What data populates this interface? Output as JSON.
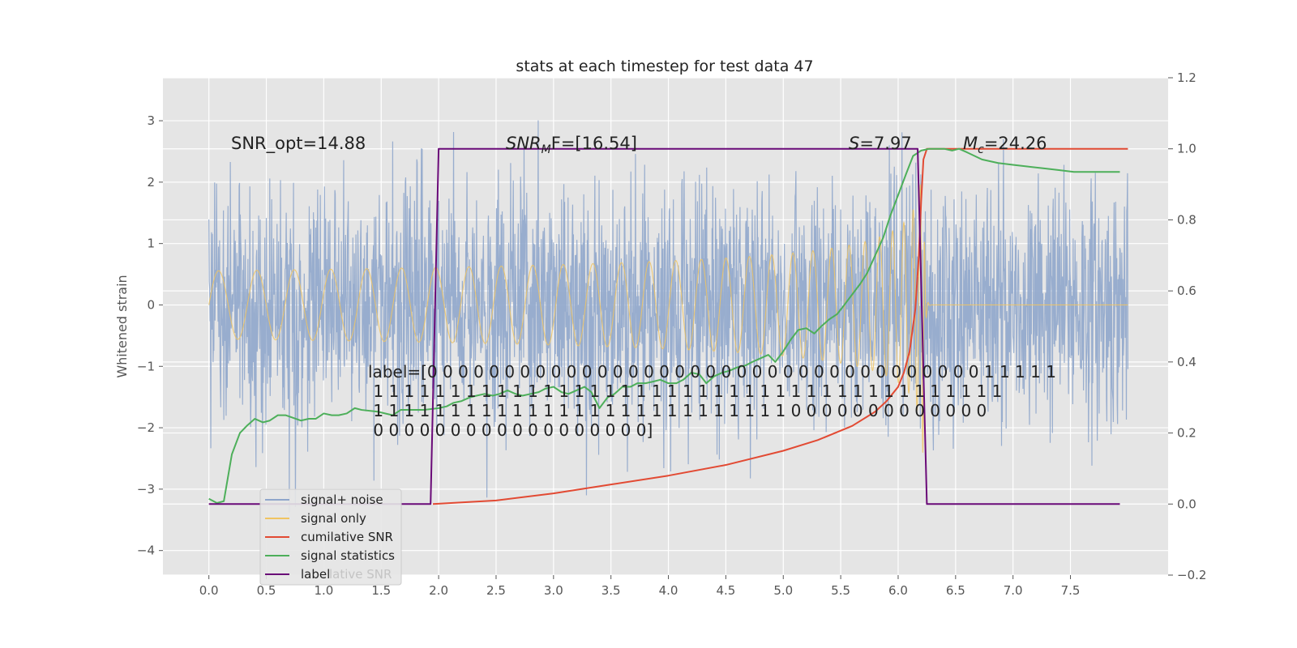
{
  "chart_data": {
    "type": "line",
    "title": "stats at each timestep for test data 47",
    "ylabel": "Whitened strain",
    "xlim": [
      -0.4,
      8.35
    ],
    "ylim": [
      -4.4,
      3.7
    ],
    "y2lim": [
      -0.2,
      1.2
    ],
    "x_ticks": [
      0.0,
      0.5,
      1.0,
      1.5,
      2.0,
      2.5,
      3.0,
      3.5,
      4.0,
      4.5,
      5.0,
      5.5,
      6.0,
      6.5,
      7.0,
      7.5
    ],
    "x_tick_labels": [
      "0.0",
      "0.5",
      "1.0",
      "1.5",
      "2.0",
      "2.5",
      "3.0",
      "3.5",
      "4.0",
      "4.5",
      "5.0",
      "5.5",
      "6.0",
      "6.5",
      "7.0",
      "7.5"
    ],
    "y_ticks": [
      3,
      2,
      1,
      0,
      -1,
      -2,
      -3,
      -4
    ],
    "y_tick_labels": [
      "3",
      "2",
      "1",
      "0",
      "−1",
      "−2",
      "−3",
      "−4"
    ],
    "y2_ticks": [
      1.2,
      1.0,
      0.8,
      0.6,
      0.4,
      0.2,
      0.0,
      -0.2
    ],
    "y2_tick_labels": [
      "1.2",
      "1.0",
      "0.8",
      "0.6",
      "0.4",
      "0.2",
      "0.0",
      "−0.2"
    ],
    "grid": true,
    "legend_placement": "lower-left",
    "legend": [
      {
        "label": "signal+ noise",
        "color": "#8fa6cb"
      },
      {
        "label": "signal only",
        "color": "#f0c461"
      },
      {
        "label": "cumilative SNR",
        "color": "#e24a33"
      },
      {
        "label": "signal statistics",
        "color": "#4daf5a"
      },
      {
        "label": "label",
        "color": "#6a0a78"
      }
    ],
    "legend_ghost_text": "lative SNR",
    "annotations": {
      "snr_opt": "SNR_opt=14.88",
      "snr_mf_prefix": "SNR",
      "snr_mf_sub": "M",
      "snr_mf_rest": "F=[16.54]",
      "s_prefix": "S",
      "s_rest": "=7.97",
      "mc_prefix": "M",
      "mc_sub": "c",
      "mc_rest": "=24.26",
      "label_lines": [
        "label=[0 0 0 0 0 0 0 0 0 0 0 0 0 0 0 0 0 0 0 0 0 0 0 0 0 0 0 0 0 0 0 0 0 0 0 0 1 1 1 1 1",
        " 1 1 1 1 1 1 1 1 1 1 1 1 1 1 1 1 1 1 1 1 1 1 1 1 1 1 1 1 1 1 1 1 1 1 1 1 1 1 1 1 1",
        " 1 1 1 1 1 1 1 1 1 1 1 1 1 1 1 1 1 1 1 1 1 1 1 1 1 1 1 0 0 0 0 0 0 0 0 0 0 0 0 0",
        " 0 0 0 0 0 0 0 0 0 0 0 0 0 0 0 0 0 0]"
      ]
    },
    "noise": {
      "name": "signal+ noise",
      "color": "#8fa6cb",
      "x_range": [
        0.0,
        8.0
      ],
      "typical_range": [
        -2.0,
        2.0
      ],
      "peak_max": 3.3,
      "peak_min": -4.1
    },
    "signal_only": {
      "name": "signal only",
      "color": "#f0c461",
      "x_range": [
        0.0,
        8.0
      ],
      "merger_time": 6.22,
      "peak_amplitude": 2.65
    },
    "series": [
      {
        "name": "cumilative SNR",
        "axis": "right",
        "color": "#e24a33",
        "x": [
          1.95,
          2.5,
          3.0,
          3.5,
          4.0,
          4.5,
          5.0,
          5.3,
          5.6,
          5.8,
          5.9,
          6.0,
          6.05,
          6.1,
          6.15,
          6.18,
          6.2,
          6.22,
          6.25,
          6.5,
          7.0,
          7.5,
          8.0
        ],
        "y": [
          0.0,
          0.01,
          0.03,
          0.055,
          0.08,
          0.11,
          0.15,
          0.18,
          0.22,
          0.26,
          0.29,
          0.33,
          0.37,
          0.43,
          0.55,
          0.7,
          0.85,
          0.97,
          1.0,
          1.0,
          1.0,
          1.0,
          1.0
        ]
      },
      {
        "name": "signal statistics",
        "axis": "right",
        "color": "#4daf5a",
        "x": [
          0.0,
          0.07,
          0.13,
          0.2,
          0.27,
          0.33,
          0.4,
          0.47,
          0.53,
          0.6,
          0.67,
          0.8,
          0.87,
          0.93,
          1.0,
          1.07,
          1.13,
          1.2,
          1.27,
          1.33,
          1.47,
          1.6,
          1.67,
          1.73,
          1.87,
          2.0,
          2.07,
          2.13,
          2.2,
          2.27,
          2.33,
          2.4,
          2.47,
          2.53,
          2.6,
          2.67,
          2.73,
          2.8,
          2.87,
          2.93,
          3.0,
          3.07,
          3.13,
          3.2,
          3.27,
          3.33,
          3.4,
          3.47,
          3.53,
          3.6,
          3.67,
          3.73,
          3.8,
          3.87,
          3.93,
          4.0,
          4.07,
          4.13,
          4.2,
          4.27,
          4.33,
          4.4,
          4.47,
          4.53,
          4.6,
          4.67,
          4.73,
          4.8,
          4.87,
          4.93,
          5.0,
          5.07,
          5.13,
          5.2,
          5.27,
          5.33,
          5.4,
          5.47,
          5.53,
          5.6,
          5.67,
          5.73,
          5.8,
          5.87,
          5.93,
          6.0,
          6.07,
          6.13,
          6.2,
          6.27,
          6.33,
          6.4,
          6.47,
          6.53,
          6.6,
          6.73,
          6.87,
          7.0,
          7.13,
          7.27,
          7.4,
          7.53,
          7.6,
          7.73,
          7.87,
          7.93
        ],
        "y": [
          0.015,
          0.003,
          0.008,
          0.14,
          0.2,
          0.22,
          0.24,
          0.23,
          0.235,
          0.25,
          0.25,
          0.235,
          0.24,
          0.24,
          0.255,
          0.25,
          0.25,
          0.255,
          0.27,
          0.265,
          0.26,
          0.25,
          0.265,
          0.265,
          0.265,
          0.27,
          0.275,
          0.285,
          0.29,
          0.3,
          0.305,
          0.31,
          0.305,
          0.31,
          0.32,
          0.31,
          0.305,
          0.31,
          0.315,
          0.325,
          0.33,
          0.315,
          0.31,
          0.32,
          0.33,
          0.315,
          0.27,
          0.3,
          0.31,
          0.33,
          0.33,
          0.34,
          0.34,
          0.345,
          0.35,
          0.34,
          0.34,
          0.35,
          0.37,
          0.365,
          0.34,
          0.36,
          0.37,
          0.375,
          0.385,
          0.39,
          0.4,
          0.41,
          0.42,
          0.4,
          0.43,
          0.465,
          0.49,
          0.495,
          0.48,
          0.5,
          0.52,
          0.535,
          0.56,
          0.59,
          0.62,
          0.65,
          0.7,
          0.75,
          0.81,
          0.87,
          0.93,
          0.98,
          0.995,
          1.0,
          1.0,
          1.0,
          0.995,
          1.0,
          0.99,
          0.97,
          0.96,
          0.955,
          0.95,
          0.945,
          0.94,
          0.935,
          0.935,
          0.935,
          0.935,
          0.935
        ]
      },
      {
        "name": "label",
        "axis": "right",
        "color": "#6a0a78",
        "x": [
          0.0,
          1.93,
          2.0,
          6.17,
          6.25,
          7.93
        ],
        "y": [
          0.0,
          0.0,
          1.0,
          1.0,
          0.0,
          0.0
        ]
      }
    ]
  }
}
